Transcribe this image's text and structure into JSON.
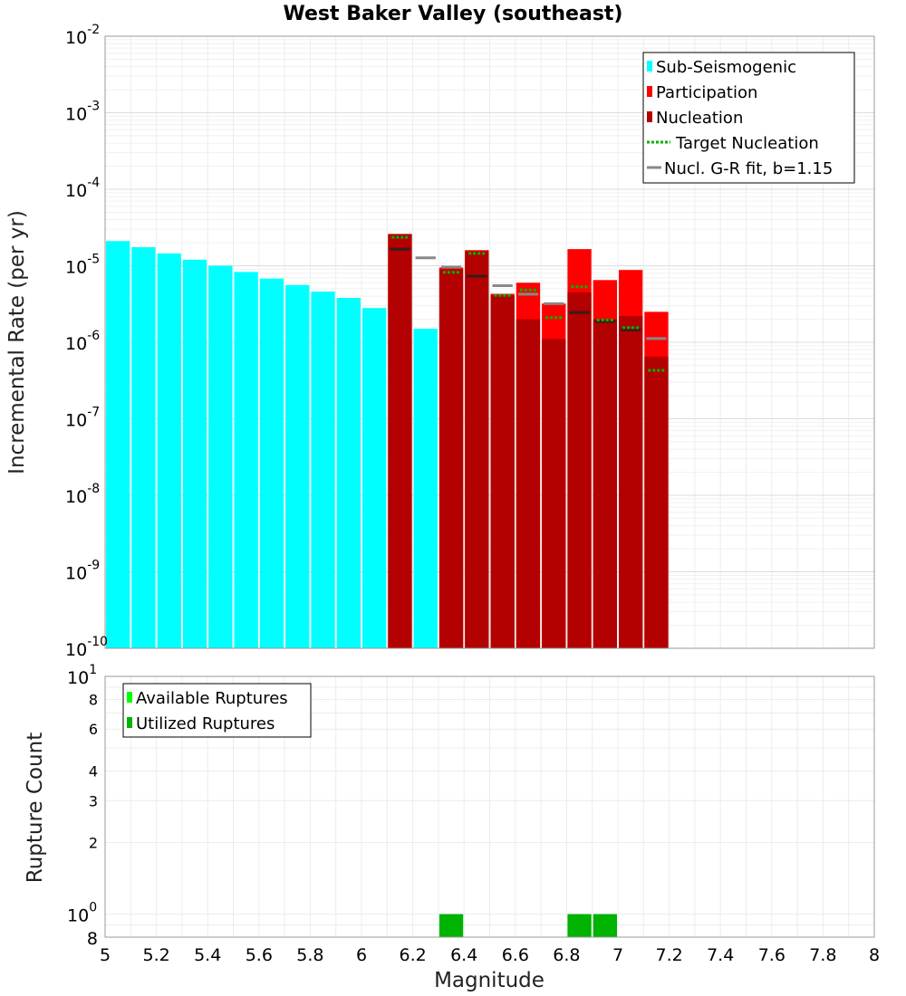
{
  "chart_data": [
    {
      "type": "bar",
      "title": "West Baker Valley (southeast)",
      "xlabel": "",
      "ylabel": "Incremental Rate (per yr)",
      "yscale": "log",
      "xlim": [
        5,
        8
      ],
      "ylim": [
        1e-10,
        0.01
      ],
      "y_ticks": [
        {
          "base": "10",
          "exp": "-10"
        },
        {
          "base": "10",
          "exp": "-9"
        },
        {
          "base": "10",
          "exp": "-8"
        },
        {
          "base": "10",
          "exp": "-7"
        },
        {
          "base": "10",
          "exp": "-6"
        },
        {
          "base": "10",
          "exp": "-5"
        },
        {
          "base": "10",
          "exp": "-4"
        },
        {
          "base": "10",
          "exp": "-3"
        },
        {
          "base": "10",
          "exp": "-2"
        }
      ],
      "legend": {
        "position": "top-right",
        "entries": [
          {
            "label": "Sub-Seismogenic",
            "color": "#00ffff",
            "style": "bar"
          },
          {
            "label": "Participation",
            "color": "#ff0000",
            "style": "bar"
          },
          {
            "label": "Nucleation",
            "color": "#b30000",
            "style": "bar"
          },
          {
            "label": "Target Nucleation",
            "color": "#00b300",
            "style": "dotted"
          },
          {
            "label": "Nucl. G-R fit, b=1.15",
            "color": "#888888",
            "style": "line"
          }
        ]
      },
      "bin_width": 0.1,
      "series": [
        {
          "name": "Sub-Seismogenic",
          "color": "#00ffff",
          "x": [
            5.05,
            5.15,
            5.25,
            5.35,
            5.45,
            5.55,
            5.65,
            5.75,
            5.85,
            5.95,
            6.05,
            6.25
          ],
          "values": [
            2.1e-05,
            1.75e-05,
            1.45e-05,
            1.2e-05,
            1e-05,
            8.3e-06,
            6.8e-06,
            5.6e-06,
            4.6e-06,
            3.8e-06,
            2.8e-06,
            1.5e-06
          ]
        },
        {
          "name": "Participation",
          "color": "#ff0000",
          "x": [
            6.15,
            6.35,
            6.45,
            6.55,
            6.65,
            6.75,
            6.85,
            6.95,
            7.05,
            7.15
          ],
          "values": [
            2.6e-05,
            9.5e-06,
            1.6e-05,
            4.3e-06,
            6e-06,
            3.2e-06,
            1.65e-05,
            6.5e-06,
            8.8e-06,
            2.5e-06
          ]
        },
        {
          "name": "Nucleation",
          "color": "#b30000",
          "x": [
            6.15,
            6.35,
            6.45,
            6.55,
            6.65,
            6.75,
            6.85,
            6.95,
            7.05,
            7.15
          ],
          "values": [
            2.6e-05,
            9e-06,
            1.55e-05,
            4.1e-06,
            2e-06,
            1.1e-06,
            4.5e-06,
            2e-06,
            2.2e-06,
            6.5e-07
          ]
        },
        {
          "name": "Target Nucleation",
          "color": "#00b300",
          "x": [
            6.15,
            6.35,
            6.45,
            6.55,
            6.65,
            6.75,
            6.85,
            6.95,
            7.05,
            7.15
          ],
          "values": [
            2.35e-05,
            8.2e-06,
            1.45e-05,
            4.1e-06,
            4.8e-06,
            2.1e-06,
            5.3e-06,
            1.95e-06,
            1.55e-06,
            4.3e-07
          ]
        },
        {
          "name": "Nucl. G-R fit, b=1.15",
          "color": "#888888",
          "x": [
            6.15,
            6.25,
            6.35,
            6.45,
            6.55,
            6.65,
            6.75,
            6.85,
            6.95,
            7.05,
            7.15
          ],
          "values": [
            1.65e-05,
            1.27e-05,
            9.6e-06,
            7.3e-06,
            5.5e-06,
            4.25e-06,
            3.2e-06,
            2.45e-06,
            1.87e-06,
            1.45e-06,
            1.12e-06
          ]
        }
      ]
    },
    {
      "type": "bar",
      "title": "",
      "xlabel": "Magnitude",
      "ylabel": "Rupture Count",
      "yscale": "log",
      "xlim": [
        5,
        8
      ],
      "ylim": [
        0.8,
        10
      ],
      "x_ticks": [
        "5",
        "5.2",
        "5.4",
        "5.6",
        "5.8",
        "6",
        "6.2",
        "6.4",
        "6.6",
        "6.8",
        "7",
        "7.2",
        "7.4",
        "7.6",
        "7.8",
        "8"
      ],
      "y_ticks_major": [
        {
          "base": "10",
          "exp": "0",
          "value": 1
        },
        {
          "base": "10",
          "exp": "1",
          "value": 10
        }
      ],
      "y_ticks_minor": [
        {
          "label": "2",
          "value": 2
        },
        {
          "label": "3",
          "value": 3
        },
        {
          "label": "4",
          "value": 4
        },
        {
          "label": "6",
          "value": 6
        },
        {
          "label": "8",
          "value": 8
        }
      ],
      "y_bottom_label": {
        "label": "8",
        "value": 0.8
      },
      "legend": {
        "position": "top-left",
        "entries": [
          {
            "label": "Available Ruptures",
            "color": "#00ff00"
          },
          {
            "label": "Utilized Ruptures",
            "color": "#00b300"
          }
        ]
      },
      "bin_width": 0.1,
      "series": [
        {
          "name": "Available Ruptures",
          "color": "#00ff00",
          "x": [
            6.35,
            6.85,
            6.95
          ],
          "values": [
            1,
            1,
            1
          ]
        },
        {
          "name": "Utilized Ruptures",
          "color": "#00b300",
          "x": [
            6.35,
            6.85,
            6.95
          ],
          "values": [
            1,
            1,
            1
          ]
        }
      ]
    }
  ]
}
